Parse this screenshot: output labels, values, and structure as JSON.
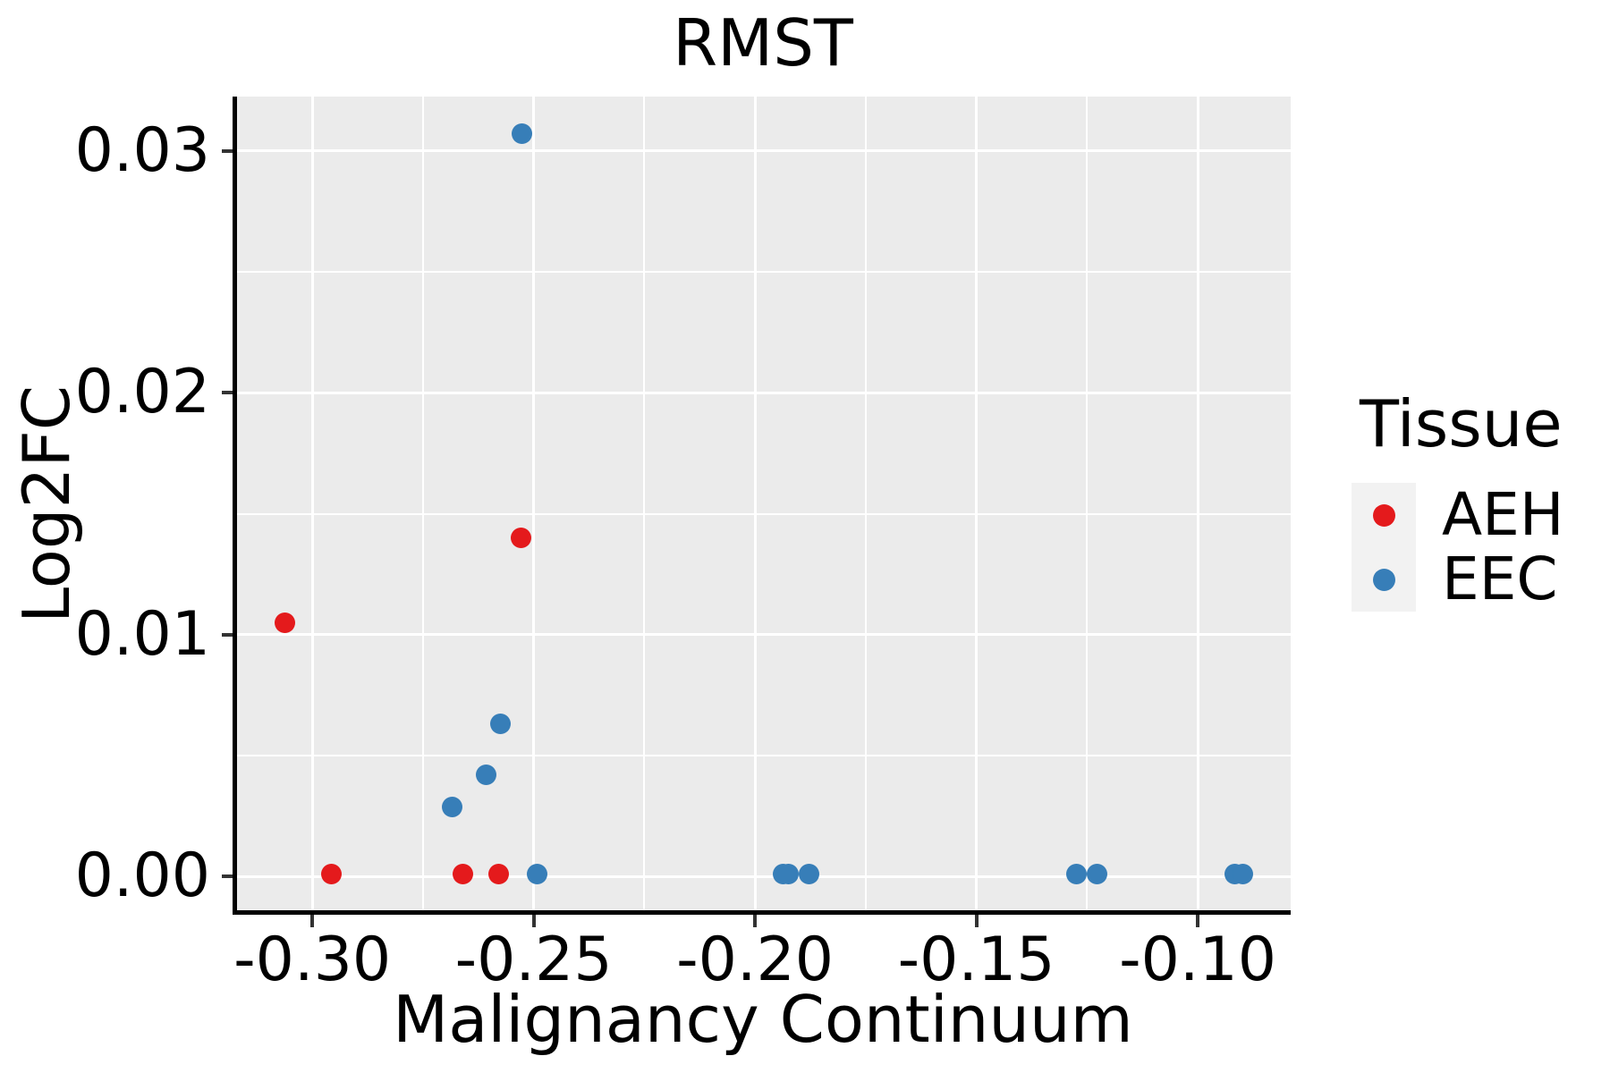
{
  "title": "RMST",
  "axes": {
    "x": {
      "label": "Malignancy Continuum",
      "tick_labels": [
        "-0.30",
        "-0.25",
        "-0.20",
        "-0.15",
        "-0.10"
      ],
      "ticks": [
        -0.3,
        -0.25,
        -0.2,
        -0.15,
        -0.1
      ],
      "minor_ticks": [
        -0.275,
        -0.225,
        -0.175,
        -0.125
      ],
      "domain": [
        -0.3172,
        -0.079
      ]
    },
    "y": {
      "label": "Log2FC",
      "tick_labels": [
        "0.00",
        "0.01",
        "0.02",
        "0.03"
      ],
      "ticks": [
        0.0,
        0.01,
        0.02,
        0.03
      ],
      "minor_ticks": [
        0.005,
        0.015,
        0.025
      ],
      "domain": [
        -0.00146,
        0.03224
      ]
    }
  },
  "legend": {
    "title": "Tissue",
    "items": [
      {
        "label": "AEH",
        "color": "#E41A1C"
      },
      {
        "label": "EEC",
        "color": "#377EB8"
      }
    ]
  },
  "colors": {
    "panel_background": "#EBEBEB",
    "gridline": "#FFFFFF",
    "axis_line": "#000000",
    "tick_mark": "#333333",
    "legend_key_background": "#F2F2F2",
    "aeh_red": "#E41A1C",
    "eec_blue": "#377EB8"
  },
  "chart_data": {
    "type": "scatter",
    "title": "RMST",
    "xlabel": "Malignancy Continuum",
    "ylabel": "Log2FC",
    "xlim": [
      -0.3172,
      -0.079
    ],
    "ylim": [
      -0.0015,
      0.0322
    ],
    "grid": true,
    "legend_position": "right",
    "legend_title": "Tissue",
    "series": [
      {
        "name": "AEH",
        "color": "#E41A1C",
        "points": [
          [
            -0.3062,
            0.0105
          ],
          [
            -0.2528,
            0.014
          ],
          [
            -0.2956,
            0.0001
          ],
          [
            -0.2659,
            0.0001
          ],
          [
            -0.2579,
            0.0001
          ]
        ]
      },
      {
        "name": "EEC",
        "color": "#377EB8",
        "points": [
          [
            -0.2526,
            0.0307
          ],
          [
            -0.2575,
            0.0063
          ],
          [
            -0.2608,
            0.0042
          ],
          [
            -0.2685,
            0.0029
          ],
          [
            -0.2492,
            0.0001
          ],
          [
            -0.1937,
            0.0001
          ],
          [
            -0.1924,
            0.0001
          ],
          [
            -0.1877,
            0.0001
          ],
          [
            -0.1273,
            0.0001
          ],
          [
            -0.1227,
            0.0001
          ],
          [
            -0.0917,
            0.0001
          ],
          [
            -0.0898,
            0.0001
          ]
        ]
      }
    ]
  }
}
